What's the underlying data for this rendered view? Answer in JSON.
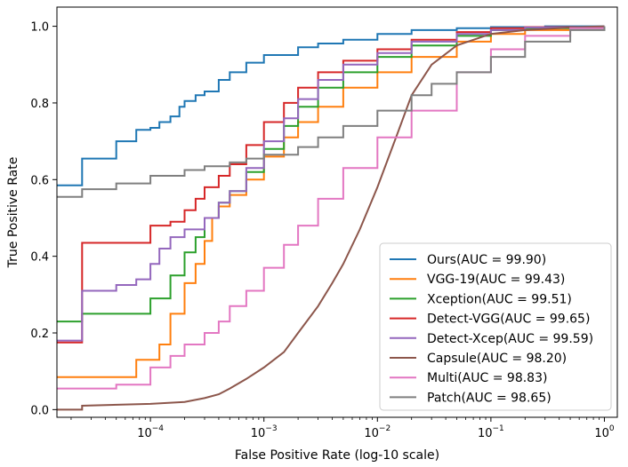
{
  "chart_data": {
    "type": "line",
    "title": "",
    "xlabel": "False Positive Rate (log-10 scale)",
    "ylabel": "True Positive Rate",
    "xscale": "log10",
    "xlim": [
      1.5e-05,
      1.3
    ],
    "ylim": [
      -0.02,
      1.05
    ],
    "xticks": [
      {
        "value": 0.0001,
        "base": "10",
        "exp": "−4"
      },
      {
        "value": 0.001,
        "base": "10",
        "exp": "−3"
      },
      {
        "value": 0.01,
        "base": "10",
        "exp": "−2"
      },
      {
        "value": 0.1,
        "base": "10",
        "exp": "−1"
      },
      {
        "value": 1,
        "base": "10",
        "exp": "0"
      }
    ],
    "yticks": [
      {
        "value": 0.0,
        "label": "0.0"
      },
      {
        "value": 0.2,
        "label": "0.2"
      },
      {
        "value": 0.4,
        "label": "0.4"
      },
      {
        "value": 0.6,
        "label": "0.6"
      },
      {
        "value": 0.8,
        "label": "0.8"
      },
      {
        "value": 1.0,
        "label": "1.0"
      }
    ],
    "grid": false,
    "legend_position": "lower-right",
    "series": [
      {
        "name": "Ours(AUC = 99.90)",
        "color": "#1f77b4",
        "step": true,
        "x": [
          1.5e-05,
          2.5e-05,
          2.5e-05,
          5e-05,
          5e-05,
          7.5e-05,
          7.5e-05,
          0.0001,
          0.00012,
          0.00015,
          0.00018,
          0.0002,
          0.00025,
          0.0003,
          0.0004,
          0.0005,
          0.0007,
          0.001,
          0.002,
          0.003,
          0.005,
          0.01,
          0.02,
          0.05,
          0.1,
          0.3,
          1.0
        ],
        "y": [
          0.585,
          0.585,
          0.655,
          0.655,
          0.7,
          0.7,
          0.73,
          0.735,
          0.75,
          0.765,
          0.79,
          0.805,
          0.82,
          0.83,
          0.86,
          0.88,
          0.905,
          0.925,
          0.945,
          0.955,
          0.965,
          0.98,
          0.99,
          0.995,
          0.998,
          1.0,
          1.0
        ]
      },
      {
        "name": "VGG-19(AUC = 99.43)",
        "color": "#ff7f0e",
        "step": true,
        "x": [
          1.5e-05,
          7.5e-05,
          7.5e-05,
          0.00012,
          0.00012,
          0.00015,
          0.00015,
          0.0002,
          0.0002,
          0.00025,
          0.0003,
          0.00035,
          0.0004,
          0.0005,
          0.0007,
          0.001,
          0.0015,
          0.002,
          0.003,
          0.005,
          0.01,
          0.02,
          0.05,
          0.1,
          0.2,
          0.5,
          1.0
        ],
        "y": [
          0.085,
          0.09,
          0.13,
          0.15,
          0.17,
          0.18,
          0.25,
          0.26,
          0.33,
          0.38,
          0.44,
          0.5,
          0.53,
          0.56,
          0.6,
          0.66,
          0.71,
          0.75,
          0.79,
          0.84,
          0.88,
          0.92,
          0.96,
          0.98,
          0.99,
          0.998,
          1.0
        ]
      },
      {
        "name": "Xception(AUC = 99.51)",
        "color": "#2ca02c",
        "step": true,
        "x": [
          1.5e-05,
          2.5e-05,
          2.5e-05,
          0.0001,
          0.0001,
          0.00015,
          0.00015,
          0.0002,
          0.0002,
          0.00025,
          0.0003,
          0.0004,
          0.0005,
          0.0007,
          0.001,
          0.0015,
          0.002,
          0.003,
          0.005,
          0.01,
          0.02,
          0.05,
          0.1,
          0.2,
          1.0
        ],
        "y": [
          0.23,
          0.23,
          0.25,
          0.26,
          0.29,
          0.31,
          0.35,
          0.37,
          0.41,
          0.45,
          0.5,
          0.54,
          0.57,
          0.62,
          0.68,
          0.74,
          0.79,
          0.84,
          0.88,
          0.92,
          0.95,
          0.975,
          0.99,
          0.995,
          1.0
        ]
      },
      {
        "name": "Detect-VGG(AUC = 99.65)",
        "color": "#d62728",
        "step": true,
        "x": [
          1.5e-05,
          2.5e-05,
          2.5e-05,
          0.0001,
          0.0001,
          0.00015,
          0.0002,
          0.00025,
          0.0003,
          0.0004,
          0.0005,
          0.0007,
          0.001,
          0.0015,
          0.002,
          0.003,
          0.005,
          0.01,
          0.02,
          0.05,
          0.1,
          0.2,
          1.0
        ],
        "y": [
          0.175,
          0.175,
          0.435,
          0.435,
          0.48,
          0.49,
          0.52,
          0.55,
          0.58,
          0.61,
          0.64,
          0.69,
          0.75,
          0.8,
          0.84,
          0.88,
          0.91,
          0.94,
          0.965,
          0.985,
          0.995,
          0.998,
          1.0
        ]
      },
      {
        "name": "Detect-Xcep(AUC = 99.59)",
        "color": "#9467bd",
        "step": true,
        "x": [
          1.5e-05,
          2.5e-05,
          2.5e-05,
          5e-05,
          5e-05,
          7.5e-05,
          7.5e-05,
          0.0001,
          0.0001,
          0.00012,
          0.00015,
          0.0002,
          0.0003,
          0.0004,
          0.0005,
          0.0007,
          0.001,
          0.0015,
          0.002,
          0.003,
          0.005,
          0.01,
          0.02,
          0.05,
          0.1,
          0.2,
          1.0
        ],
        "y": [
          0.18,
          0.18,
          0.31,
          0.31,
          0.325,
          0.325,
          0.34,
          0.34,
          0.38,
          0.42,
          0.45,
          0.47,
          0.5,
          0.54,
          0.57,
          0.63,
          0.7,
          0.76,
          0.81,
          0.86,
          0.9,
          0.93,
          0.96,
          0.98,
          0.99,
          0.997,
          1.0
        ]
      },
      {
        "name": "Capsule(AUC = 98.20)",
        "color": "#8c564b",
        "step": false,
        "x": [
          1.5e-05,
          2.5e-05,
          2.5e-05,
          0.0001,
          0.0002,
          0.0003,
          0.0004,
          0.0005,
          0.0007,
          0.001,
          0.0015,
          0.002,
          0.003,
          0.004,
          0.005,
          0.007,
          0.01,
          0.015,
          0.02,
          0.03,
          0.05,
          0.1,
          0.2,
          0.5,
          1.0
        ],
        "y": [
          0.0,
          0.0,
          0.01,
          0.015,
          0.02,
          0.03,
          0.04,
          0.055,
          0.08,
          0.11,
          0.15,
          0.2,
          0.27,
          0.33,
          0.38,
          0.47,
          0.58,
          0.72,
          0.82,
          0.9,
          0.95,
          0.98,
          0.99,
          0.997,
          1.0
        ]
      },
      {
        "name": "Multi(AUC = 98.83)",
        "color": "#e377c2",
        "step": true,
        "x": [
          1.5e-05,
          5e-05,
          5e-05,
          0.0001,
          0.0001,
          0.00015,
          0.0002,
          0.0003,
          0.0004,
          0.0005,
          0.0007,
          0.001,
          0.0015,
          0.002,
          0.003,
          0.005,
          0.01,
          0.02,
          0.05,
          0.1,
          0.2,
          0.5,
          1.0
        ],
        "y": [
          0.055,
          0.06,
          0.065,
          0.07,
          0.11,
          0.14,
          0.17,
          0.2,
          0.23,
          0.27,
          0.31,
          0.37,
          0.43,
          0.48,
          0.55,
          0.63,
          0.71,
          0.78,
          0.88,
          0.94,
          0.975,
          0.995,
          1.0
        ]
      },
      {
        "name": "Patch(AUC = 98.65)",
        "color": "#7f7f7f",
        "step": true,
        "x": [
          1.5e-05,
          2.5e-05,
          2.5e-05,
          5e-05,
          5e-05,
          0.0001,
          0.0002,
          0.0003,
          0.0005,
          0.0007,
          0.001,
          0.002,
          0.003,
          0.005,
          0.01,
          0.02,
          0.03,
          0.05,
          0.1,
          0.2,
          0.5,
          1.0
        ],
        "y": [
          0.555,
          0.555,
          0.575,
          0.575,
          0.59,
          0.61,
          0.625,
          0.635,
          0.645,
          0.655,
          0.665,
          0.685,
          0.71,
          0.74,
          0.78,
          0.82,
          0.85,
          0.88,
          0.92,
          0.96,
          0.99,
          1.0
        ]
      }
    ]
  }
}
